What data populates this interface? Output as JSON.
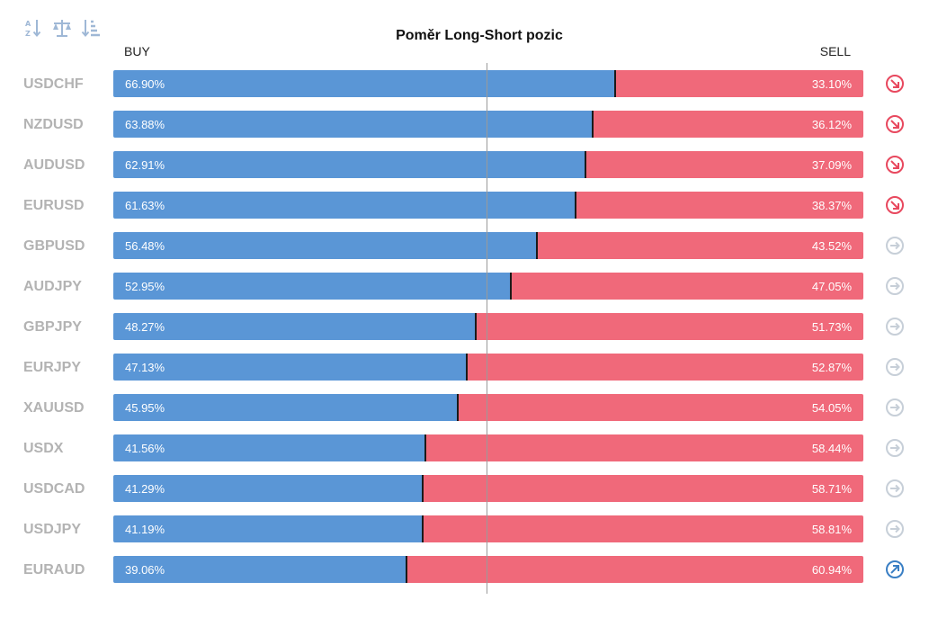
{
  "toolbar": {
    "tools": [
      {
        "icon": "sort-alpha-icon"
      },
      {
        "icon": "balance-scale-icon"
      },
      {
        "icon": "sort-amount-icon"
      }
    ]
  },
  "colors": {
    "buy": "#5a96d6",
    "sell": "#f0697a",
    "down": "#e8485e",
    "neutral": "#c7cfd8",
    "up": "#3a7fc4"
  },
  "chart_data": {
    "type": "bar",
    "title": "Poměr Long-Short pozic",
    "buy_label": "BUY",
    "sell_label": "SELL",
    "stacked": true,
    "orientation": "horizontal",
    "categories": [
      "USDCHF",
      "NZDUSD",
      "AUDUSD",
      "EURUSD",
      "GBPUSD",
      "AUDJPY",
      "GBPJPY",
      "EURJPY",
      "XAUUSD",
      "USDX",
      "USDCAD",
      "USDJPY",
      "EURAUD"
    ],
    "series": [
      {
        "name": "BUY",
        "values": [
          66.9,
          63.88,
          62.91,
          61.63,
          56.48,
          52.95,
          48.27,
          47.13,
          45.95,
          41.56,
          41.29,
          41.19,
          39.06
        ]
      },
      {
        "name": "SELL",
        "values": [
          33.1,
          36.12,
          37.09,
          38.37,
          43.52,
          47.05,
          51.73,
          52.87,
          54.05,
          58.44,
          58.71,
          58.81,
          60.94
        ]
      }
    ],
    "buy_text": [
      "66.90%",
      "63.88%",
      "62.91%",
      "61.63%",
      "56.48%",
      "52.95%",
      "48.27%",
      "47.13%",
      "45.95%",
      "41.56%",
      "41.29%",
      "41.19%",
      "39.06%"
    ],
    "sell_text": [
      "33.10%",
      "36.12%",
      "37.09%",
      "38.37%",
      "43.52%",
      "47.05%",
      "51.73%",
      "52.87%",
      "54.05%",
      "58.44%",
      "58.71%",
      "58.81%",
      "60.94%"
    ],
    "trend": [
      "down",
      "down",
      "down",
      "down",
      "neutral",
      "neutral",
      "neutral",
      "neutral",
      "neutral",
      "neutral",
      "neutral",
      "neutral",
      "up"
    ],
    "xlim": [
      0,
      100
    ],
    "reference_line": 50
  }
}
